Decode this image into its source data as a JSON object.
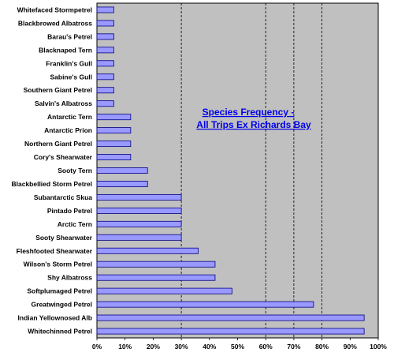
{
  "chart_data": {
    "type": "bar",
    "orientation": "horizontal",
    "title": [
      "Species Frequency -",
      "All Trips Ex Richards Bay"
    ],
    "categories": [
      "Whitefaced Stormpetrel",
      "Blackbrowed Albatross",
      "Barau's Petrel",
      "Blacknaped Tern",
      "Franklin's Gull",
      "Sabine's Gull",
      "Southern Giant Petrel",
      "Salvin's Albatross",
      "Antarctic Tern",
      "Antarctic Prion",
      "Northern Giant Petrel",
      "Cory's Shearwater",
      "Sooty Tern",
      "Blackbellied Storm Petrel",
      "Subantarctic Skua",
      "Pintado Petrel",
      "Arctic Tern",
      "Sooty Shearwater",
      "Fleshfooted Shearwater",
      "Wilson's Storm Petrel",
      "Shy Albatross",
      "Softplumaged Petrel",
      "Greatwinged Petrel",
      "Indian Yellownosed Alb",
      "Whitechinned Petrel"
    ],
    "values": [
      6,
      6,
      6,
      6,
      6,
      6,
      6,
      6,
      12,
      12,
      12,
      12,
      18,
      18,
      30,
      30,
      30,
      30,
      36,
      42,
      42,
      48,
      77,
      95,
      95
    ],
    "xlim": [
      0,
      100
    ],
    "x_ticks": [
      "0%",
      "10%",
      "20%",
      "30%",
      "40%",
      "50%",
      "60%",
      "70%",
      "80%",
      "90%",
      "100%"
    ],
    "gridlines_at": [
      30,
      60,
      70,
      80
    ],
    "gridline_style": "dashed",
    "colors": {
      "plot_background": "#c0c0c0",
      "bar_fill": "#9999ff",
      "bar_stroke": "#000080",
      "title": "#0000ee"
    }
  }
}
